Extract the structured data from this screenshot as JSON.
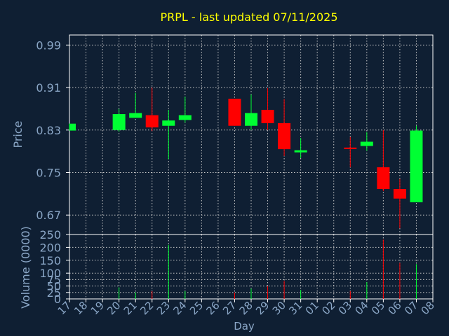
{
  "chart_data": {
    "type": "candlestick",
    "title": "PRPL - last updated 07/11/2025",
    "xlabel": "Day",
    "price_panel": {
      "ylabel": "Price",
      "yticks": [
        "0.67",
        "0.75",
        "0.83",
        "0.91",
        "0.99"
      ],
      "ylim": [
        0.6334,
        1.0089
      ],
      "grid": true
    },
    "volume_panel": {
      "ylabel": "Volume (0000)",
      "yticks": [
        "0",
        "25",
        "50",
        "75",
        "100",
        "150",
        "200",
        "250"
      ],
      "ylim": [
        0,
        250
      ],
      "grid": true
    },
    "x_ticks": [
      "17",
      "18",
      "19",
      "20",
      "21",
      "22",
      "23",
      "24",
      "25",
      "26",
      "27",
      "28",
      "29",
      "30",
      "31",
      "01",
      "02",
      "03",
      "04",
      "05",
      "06",
      "07",
      "08"
    ],
    "candles": [
      {
        "day": "17",
        "open": 0.829,
        "high": 0.842,
        "low": 0.829,
        "close": 0.842,
        "volume": 0,
        "dir": "up"
      },
      {
        "day": "20",
        "open": 0.83,
        "high": 0.87,
        "low": 0.827,
        "close": 0.86,
        "volume": 45,
        "dir": "up"
      },
      {
        "day": "21",
        "open": 0.853,
        "high": 0.9,
        "low": 0.853,
        "close": 0.862,
        "volume": 25,
        "dir": "up"
      },
      {
        "day": "22",
        "open": 0.858,
        "high": 0.91,
        "low": 0.828,
        "close": 0.835,
        "volume": 30,
        "dir": "down"
      },
      {
        "day": "23",
        "open": 0.838,
        "high": 0.868,
        "low": 0.775,
        "close": 0.848,
        "volume": 210,
        "dir": "up"
      },
      {
        "day": "24",
        "open": 0.849,
        "high": 0.893,
        "low": 0.844,
        "close": 0.858,
        "volume": 30,
        "dir": "up"
      },
      {
        "day": "27",
        "open": 0.889,
        "high": 0.889,
        "low": 0.838,
        "close": 0.838,
        "volume": 25,
        "dir": "down"
      },
      {
        "day": "28",
        "open": 0.838,
        "high": 0.897,
        "low": 0.83,
        "close": 0.862,
        "volume": 40,
        "dir": "up"
      },
      {
        "day": "29",
        "open": 0.868,
        "high": 0.909,
        "low": 0.83,
        "close": 0.843,
        "volume": 50,
        "dir": "down"
      },
      {
        "day": "30",
        "open": 0.843,
        "high": 0.888,
        "low": 0.781,
        "close": 0.794,
        "volume": 70,
        "dir": "down"
      },
      {
        "day": "31",
        "open": 0.788,
        "high": 0.815,
        "low": 0.777,
        "close": 0.792,
        "volume": 35,
        "dir": "up"
      },
      {
        "day": "03",
        "open": 0.797,
        "high": 0.817,
        "low": 0.76,
        "close": 0.796,
        "volume": 30,
        "dir": "down"
      },
      {
        "day": "04",
        "open": 0.8,
        "high": 0.826,
        "low": 0.791,
        "close": 0.808,
        "volume": 65,
        "dir": "up"
      },
      {
        "day": "05",
        "open": 0.76,
        "high": 0.83,
        "low": 0.715,
        "close": 0.719,
        "volume": 230,
        "dir": "down"
      },
      {
        "day": "06",
        "open": 0.719,
        "high": 0.738,
        "low": 0.645,
        "close": 0.701,
        "volume": 140,
        "dir": "down"
      },
      {
        "day": "07",
        "open": 0.694,
        "high": 0.838,
        "low": 0.694,
        "close": 0.829,
        "volume": 135,
        "dir": "up"
      }
    ],
    "colors": {
      "background": "#0f1f33",
      "axis": "#ffffff",
      "grid": "#c8c8c8",
      "up": "#00ff33",
      "down": "#ff0000",
      "label": "#8aa6c6",
      "title": "#ffff00"
    }
  }
}
